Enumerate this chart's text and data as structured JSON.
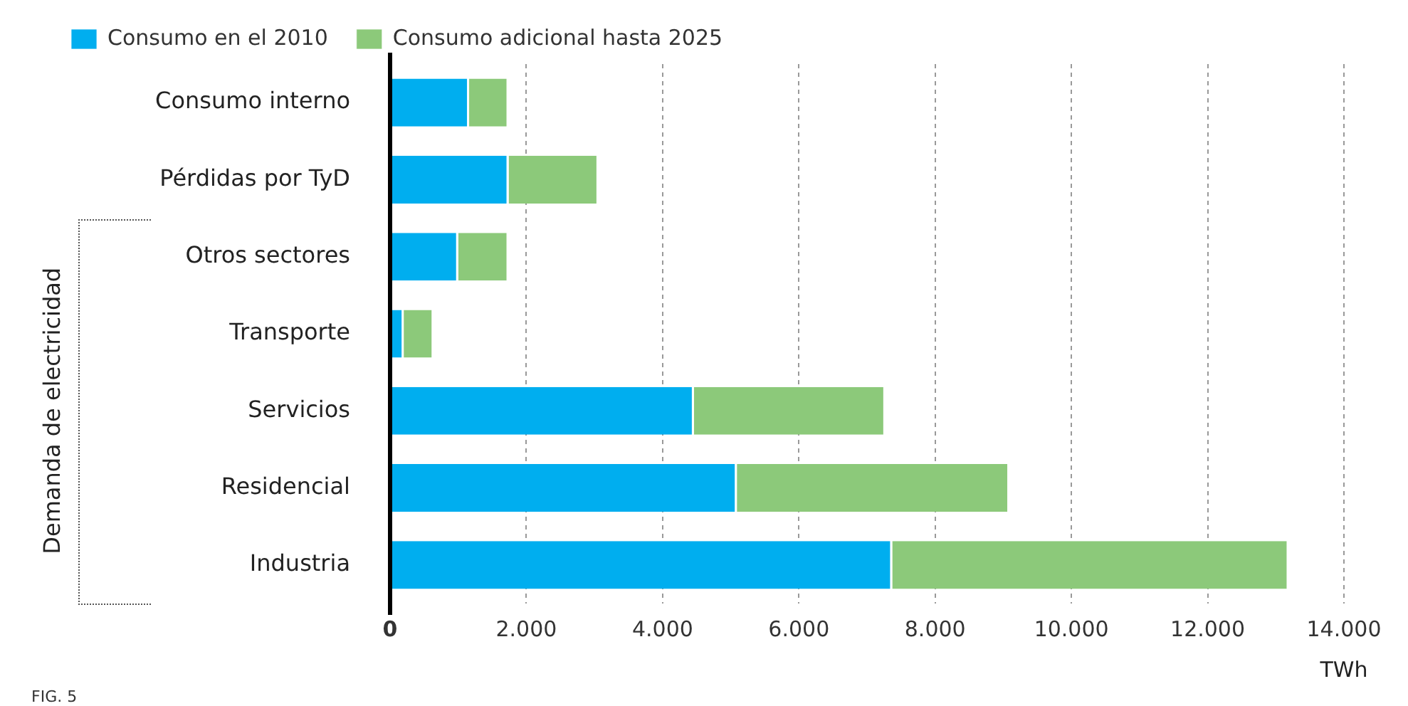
{
  "chart_data": {
    "type": "bar",
    "orientation": "horizontal",
    "stacked": true,
    "categories": [
      "Consumo interno",
      "Pérdidas por TyD",
      "Otros sectores",
      "Transporte",
      "Servicios",
      "Residencial",
      "Industria"
    ],
    "series": [
      {
        "name": "Consumo en el 2010",
        "color": "#00aeef",
        "values": [
          1160,
          1740,
          1000,
          200,
          4460,
          5090,
          7370
        ]
      },
      {
        "name": "Consumo adicional hasta 2025",
        "color": "#8cc97a",
        "values": [
          580,
          1320,
          740,
          440,
          2810,
          4000,
          5820
        ]
      }
    ],
    "xlim": [
      0,
      14000
    ],
    "xticks": [
      {
        "value": 0,
        "label": "0"
      },
      {
        "value": 2000,
        "label": "2.000"
      },
      {
        "value": 4000,
        "label": "4.000"
      },
      {
        "value": 6000,
        "label": "6.000"
      },
      {
        "value": 8000,
        "label": "8.000"
      },
      {
        "value": 10000,
        "label": "10.000"
      },
      {
        "value": 12000,
        "label": "12.000"
      },
      {
        "value": 14000,
        "label": "14.000"
      }
    ],
    "xlabel": "TWh",
    "ylabel": "Demanda de electricidad",
    "grid": "x",
    "legend": "top left",
    "annotations": [
      "FIG. 5"
    ]
  }
}
